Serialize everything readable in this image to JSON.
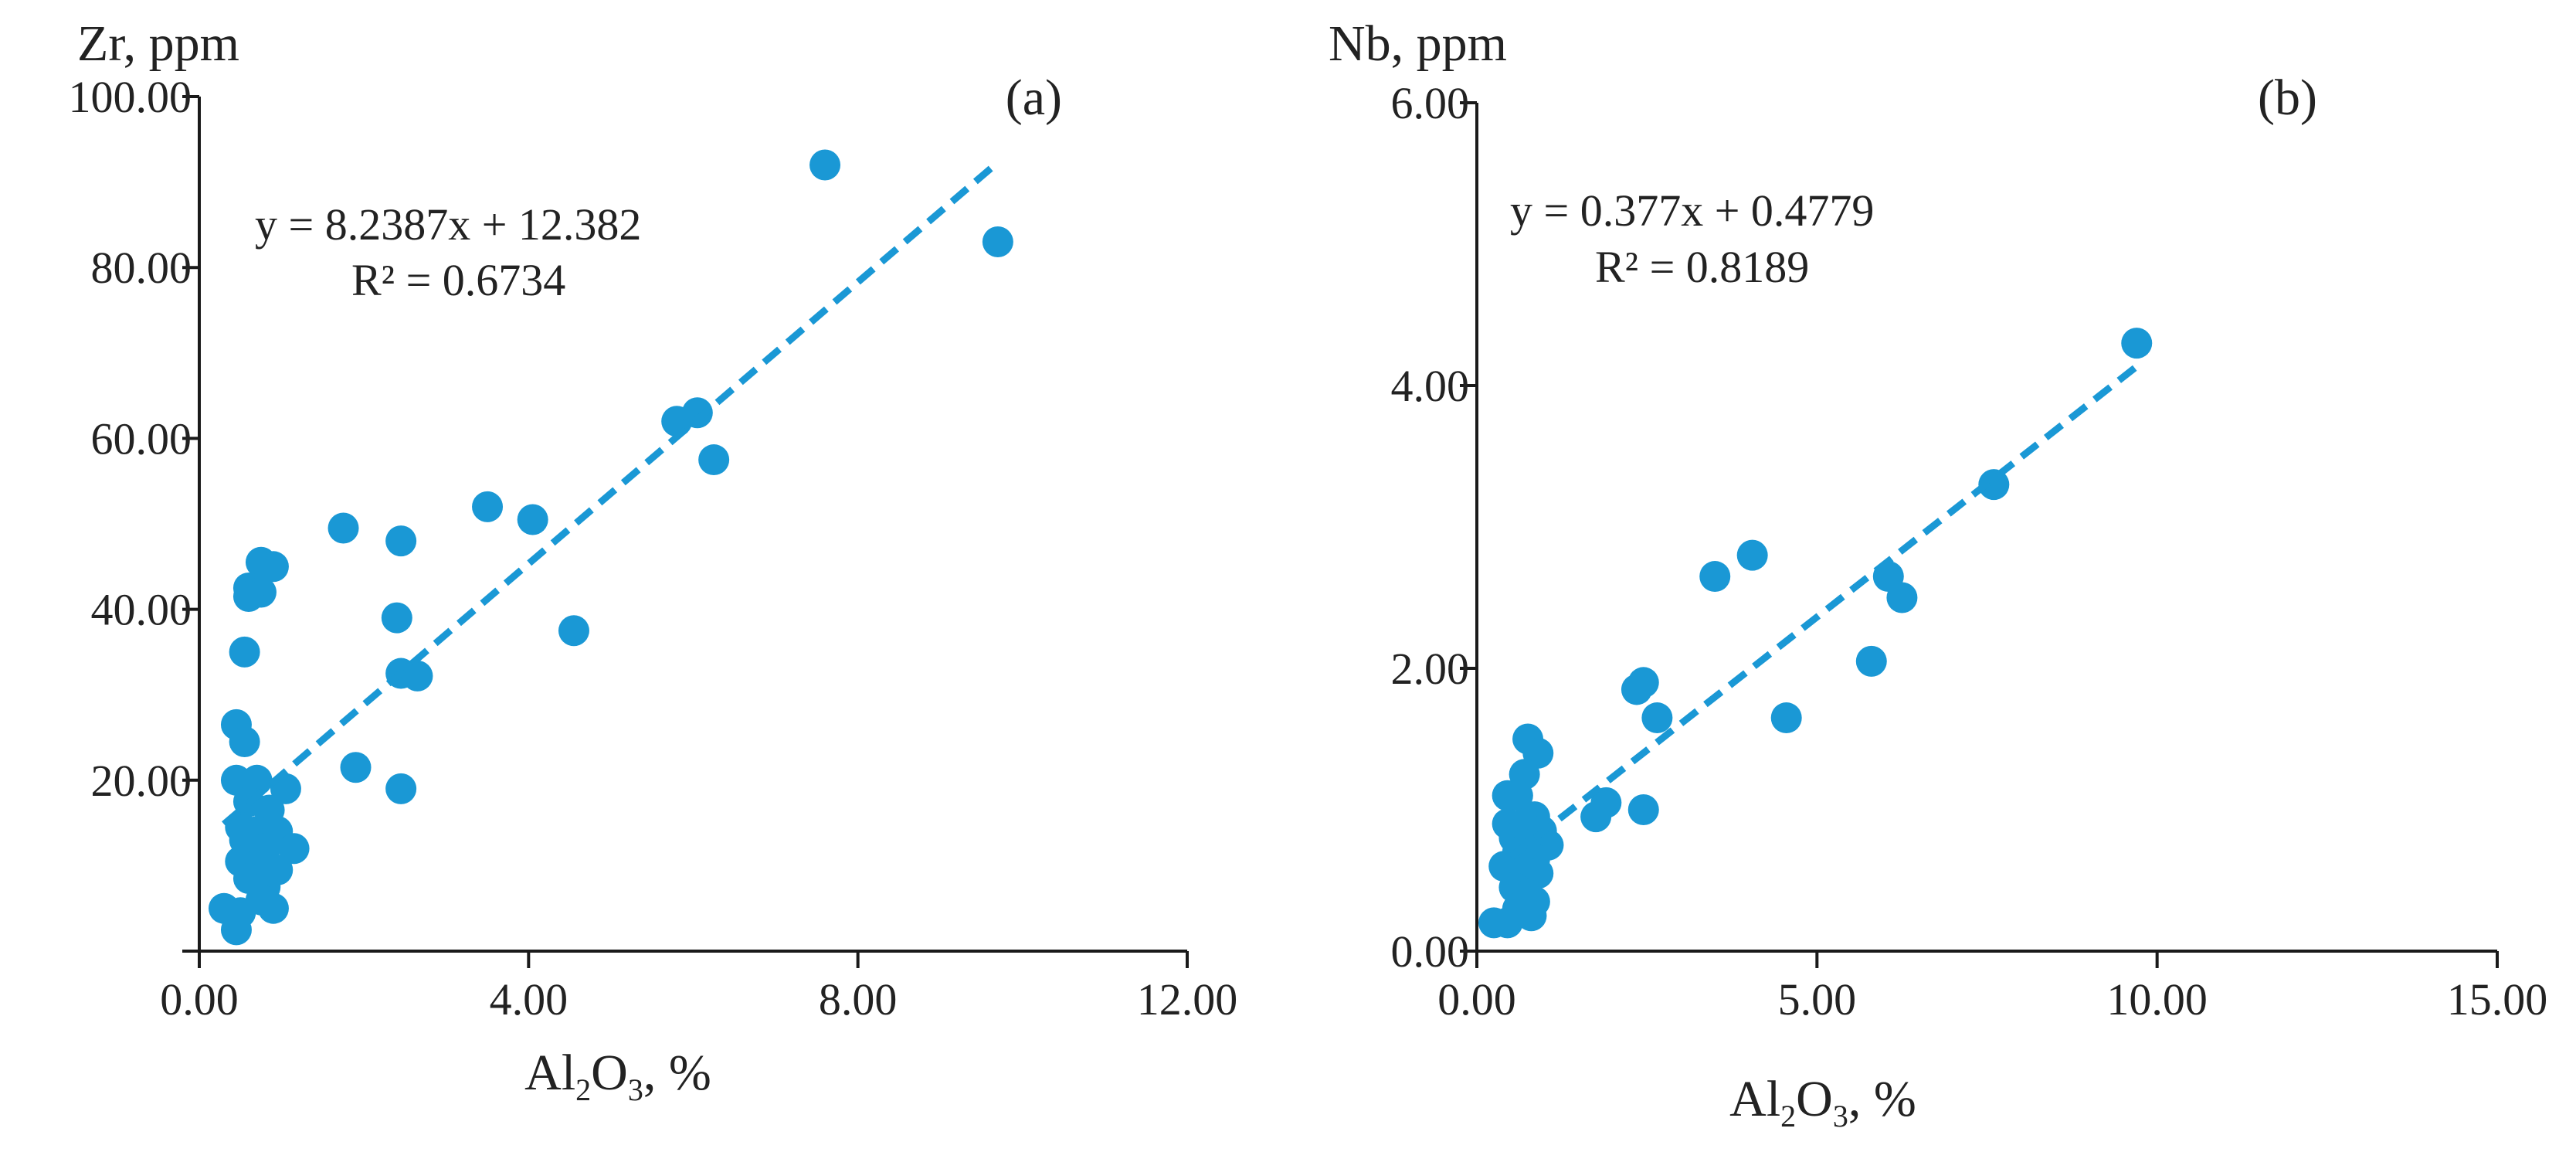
{
  "style": {
    "marker_color": "#1a98d5",
    "axis_color": "#1a1a1a",
    "text_color": "#222222"
  },
  "chart_data": [
    {
      "type": "scatter",
      "panel_label": "(a)",
      "ylabel": "Zr, ppm",
      "xlabel": {
        "main": "Al",
        "sub1": "2",
        "mid": "O",
        "sub2": "3",
        "tail": ", %"
      },
      "xlim": [
        0,
        12
      ],
      "ylim": [
        0,
        100
      ],
      "xticks": [
        0,
        4,
        8,
        12
      ],
      "xtick_labels": [
        "0.00",
        "4.00",
        "8.00",
        "12.00"
      ],
      "yticks": [
        0,
        20,
        40,
        60,
        80,
        100
      ],
      "ytick_labels": [
        "",
        "20.00",
        "40.00",
        "60.00",
        "80.00",
        "100.00"
      ],
      "trendline": {
        "equation": "y = 8.2387x + 12.382",
        "r2": "R² = 0.6734",
        "slope": 8.2387,
        "intercept": 12.382,
        "x_range": [
          0.3,
          9.7
        ]
      },
      "points": [
        {
          "x": 7.6,
          "y": 92
        },
        {
          "x": 9.7,
          "y": 83
        },
        {
          "x": 5.8,
          "y": 62
        },
        {
          "x": 6.05,
          "y": 63
        },
        {
          "x": 6.25,
          "y": 57.5
        },
        {
          "x": 3.5,
          "y": 52
        },
        {
          "x": 4.05,
          "y": 50.5
        },
        {
          "x": 1.75,
          "y": 49.5
        },
        {
          "x": 2.45,
          "y": 48
        },
        {
          "x": 0.75,
          "y": 45.5
        },
        {
          "x": 0.9,
          "y": 45
        },
        {
          "x": 0.6,
          "y": 42.5
        },
        {
          "x": 0.75,
          "y": 42
        },
        {
          "x": 0.6,
          "y": 41.5
        },
        {
          "x": 2.4,
          "y": 39
        },
        {
          "x": 4.55,
          "y": 37.5
        },
        {
          "x": 0.55,
          "y": 35
        },
        {
          "x": 2.45,
          "y": 32.5
        },
        {
          "x": 2.65,
          "y": 32.2
        },
        {
          "x": 0.45,
          "y": 26.5
        },
        {
          "x": 0.55,
          "y": 24.5
        },
        {
          "x": 1.9,
          "y": 21.5
        },
        {
          "x": 2.45,
          "y": 19
        },
        {
          "x": 0.45,
          "y": 20
        },
        {
          "x": 0.7,
          "y": 20
        },
        {
          "x": 1.05,
          "y": 19
        },
        {
          "x": 0.6,
          "y": 17.5
        },
        {
          "x": 0.85,
          "y": 16.5
        },
        {
          "x": 0.5,
          "y": 14.5
        },
        {
          "x": 0.7,
          "y": 14
        },
        {
          "x": 0.95,
          "y": 14
        },
        {
          "x": 0.55,
          "y": 13
        },
        {
          "x": 1.15,
          "y": 12
        },
        {
          "x": 0.8,
          "y": 12
        },
        {
          "x": 0.5,
          "y": 10.5
        },
        {
          "x": 0.7,
          "y": 10
        },
        {
          "x": 0.95,
          "y": 9.5
        },
        {
          "x": 0.6,
          "y": 8.5
        },
        {
          "x": 0.8,
          "y": 7.5
        },
        {
          "x": 0.75,
          "y": 6
        },
        {
          "x": 0.9,
          "y": 5
        },
        {
          "x": 0.3,
          "y": 5
        },
        {
          "x": 0.5,
          "y": 4.5
        },
        {
          "x": 0.45,
          "y": 2.5
        }
      ]
    },
    {
      "type": "scatter",
      "panel_label": "(b)",
      "ylabel": "Nb, ppm",
      "xlabel": {
        "main": "Al",
        "sub1": "2",
        "mid": "O",
        "sub2": "3",
        "tail": ", %"
      },
      "xlim": [
        0,
        15
      ],
      "ylim": [
        0,
        6
      ],
      "xticks": [
        0,
        5,
        10,
        15
      ],
      "xtick_labels": [
        "0.00",
        "5.00",
        "10.00",
        "15.00"
      ],
      "yticks": [
        0,
        2,
        4,
        6
      ],
      "ytick_labels": [
        "0.00",
        "2.00",
        "4.00",
        "6.00"
      ],
      "trendline": {
        "equation": "y = 0.377x + 0.4779",
        "r2": "R² = 0.8189",
        "slope": 0.377,
        "intercept": 0.4779,
        "x_range": [
          0.5,
          9.7
        ]
      },
      "points": [
        {
          "x": 9.7,
          "y": 4.3
        },
        {
          "x": 7.6,
          "y": 3.3
        },
        {
          "x": 4.05,
          "y": 2.8
        },
        {
          "x": 3.5,
          "y": 2.65
        },
        {
          "x": 6.05,
          "y": 2.65
        },
        {
          "x": 6.25,
          "y": 2.5
        },
        {
          "x": 5.8,
          "y": 2.05
        },
        {
          "x": 2.45,
          "y": 1.9
        },
        {
          "x": 2.35,
          "y": 1.85
        },
        {
          "x": 2.65,
          "y": 1.65
        },
        {
          "x": 4.55,
          "y": 1.65
        },
        {
          "x": 0.75,
          "y": 1.5
        },
        {
          "x": 0.9,
          "y": 1.4
        },
        {
          "x": 0.7,
          "y": 1.25
        },
        {
          "x": 0.45,
          "y": 1.1
        },
        {
          "x": 0.6,
          "y": 1.1
        },
        {
          "x": 1.9,
          "y": 1.05
        },
        {
          "x": 2.45,
          "y": 1.0
        },
        {
          "x": 1.75,
          "y": 0.95
        },
        {
          "x": 0.85,
          "y": 0.95
        },
        {
          "x": 0.45,
          "y": 0.9
        },
        {
          "x": 0.7,
          "y": 0.9
        },
        {
          "x": 0.95,
          "y": 0.85
        },
        {
          "x": 0.55,
          "y": 0.8
        },
        {
          "x": 1.05,
          "y": 0.75
        },
        {
          "x": 0.75,
          "y": 0.75
        },
        {
          "x": 0.6,
          "y": 0.7
        },
        {
          "x": 0.85,
          "y": 0.65
        },
        {
          "x": 0.4,
          "y": 0.6
        },
        {
          "x": 0.65,
          "y": 0.55
        },
        {
          "x": 0.9,
          "y": 0.55
        },
        {
          "x": 0.55,
          "y": 0.45
        },
        {
          "x": 0.75,
          "y": 0.4
        },
        {
          "x": 0.85,
          "y": 0.35
        },
        {
          "x": 0.6,
          "y": 0.3
        },
        {
          "x": 0.8,
          "y": 0.25
        },
        {
          "x": 0.25,
          "y": 0.2
        },
        {
          "x": 0.45,
          "y": 0.2
        }
      ]
    }
  ]
}
